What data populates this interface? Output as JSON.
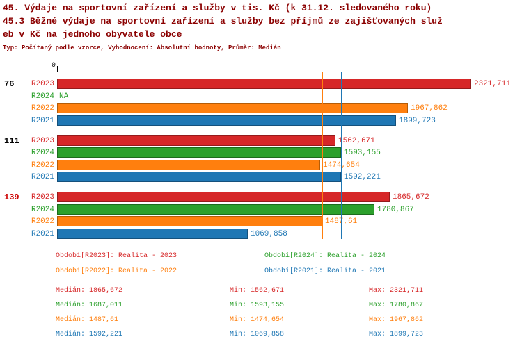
{
  "header": {
    "title_line1": "45. Výdaje na sportovní zařízení a služby v tis. Kč (k 31.12. sledovaného roku)",
    "title_line2": "45.3 Běžné výdaje na sportovní zařízení a služby bez příjmů ze zajišťovaných služ",
    "title_line3": "eb v Kč na jednoho obyvatele obce",
    "subtitle": "Typ: Počítaný podle vzorce, Vyhodnocení: Absolutní hodnoty, Průměr: Medián"
  },
  "chart_data": {
    "type": "bar",
    "orientation": "horizontal",
    "x_origin_label": "0",
    "xlim": [
      0,
      2600
    ],
    "grid": false,
    "series_colors": {
      "R2023": "#d62728",
      "R2024": "#2ca02c",
      "R2022": "#ff7f0e",
      "R2021": "#1f77b4"
    },
    "groups": [
      {
        "label": "76",
        "label_color": "#000000",
        "bars": [
          {
            "series": "R2023",
            "value": 2321.711,
            "value_label": "2321,711"
          },
          {
            "series": "R2024",
            "value": null,
            "value_label": "NA"
          },
          {
            "series": "R2022",
            "value": 1967.862,
            "value_label": "1967,862"
          },
          {
            "series": "R2021",
            "value": 1899.723,
            "value_label": "1899,723"
          }
        ]
      },
      {
        "label": "111",
        "label_color": "#000000",
        "bars": [
          {
            "series": "R2023",
            "value": 1562.671,
            "value_label": "1562,671"
          },
          {
            "series": "R2024",
            "value": 1593.155,
            "value_label": "1593,155"
          },
          {
            "series": "R2022",
            "value": 1474.654,
            "value_label": "1474,654"
          },
          {
            "series": "R2021",
            "value": 1592.221,
            "value_label": "1592,221"
          }
        ]
      },
      {
        "label": "139",
        "label_color": "#cc0000",
        "bars": [
          {
            "series": "R2023",
            "value": 1865.672,
            "value_label": "1865,672"
          },
          {
            "series": "R2024",
            "value": 1780.867,
            "value_label": "1780,867"
          },
          {
            "series": "R2022",
            "value": 1487.61,
            "value_label": "1487,61"
          },
          {
            "series": "R2021",
            "value": 1069.858,
            "value_label": "1069,858"
          }
        ]
      }
    ],
    "median_lines": [
      {
        "series": "R2022",
        "value": 1487.61
      },
      {
        "series": "R2021",
        "value": 1592.221
      },
      {
        "series": "R2024",
        "value": 1687.011
      },
      {
        "series": "R2023",
        "value": 1865.672
      }
    ]
  },
  "legend": {
    "items": [
      {
        "series": "R2023",
        "label": "Období[R2023]: Realita - 2023"
      },
      {
        "series": "R2024",
        "label": "Období[R2024]: Realita - 2024"
      },
      {
        "series": "R2022",
        "label": "Období[R2022]: Realita - 2022"
      },
      {
        "series": "R2021",
        "label": "Období[R2021]: Realita - 2021"
      }
    ]
  },
  "stats": {
    "labels": {
      "median": "Medián",
      "min": "Min",
      "max": "Max"
    },
    "rows": [
      {
        "series": "R2023",
        "median": "1865,672",
        "min": "1562,671",
        "max": "2321,711"
      },
      {
        "series": "R2024",
        "median": "1687,011",
        "min": "1593,155",
        "max": "1780,867"
      },
      {
        "series": "R2022",
        "median": "1487,61",
        "min": "1474,654",
        "max": "1967,862"
      },
      {
        "series": "R2021",
        "median": "1592,221",
        "min": "1069,858",
        "max": "1899,723"
      }
    ]
  }
}
